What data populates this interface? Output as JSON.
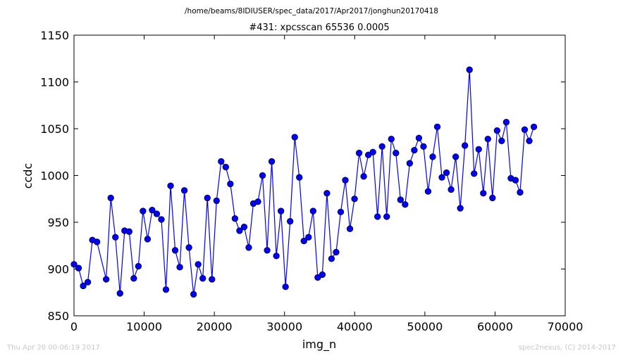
{
  "figure": {
    "path_text": "/home/beams/8IDIUSER/spec_data/2017/Apr2017/jonghun20170418",
    "title": "#431: xpcsscan 65536 0.0005",
    "timestamp": "Thu Apr 20 00:06:19 2017",
    "credit": "spec2nexus, (C) 2014-2017",
    "series_color": "#0000ff"
  },
  "chart_data": {
    "type": "line",
    "title": "#431: xpcsscan 65536 0.0005",
    "xlabel": "img_n",
    "ylabel": "ccdc",
    "xlim": [
      0,
      70000
    ],
    "ylim": [
      850,
      1150
    ],
    "xticks": [
      0,
      10000,
      20000,
      30000,
      40000,
      50000,
      60000,
      70000
    ],
    "yticks": [
      850,
      900,
      950,
      1000,
      1050,
      1100,
      1150
    ],
    "grid": false,
    "marker": "circle",
    "series": [
      {
        "x": [
          0,
          655,
          1311,
          1966,
          2621,
          3277,
          4588,
          5243,
          5898,
          6554,
          7209,
          7864,
          8520,
          9175,
          9830,
          10486,
          11141,
          11796,
          12452,
          13107,
          13762,
          14418,
          15073,
          15728,
          16384,
          17039,
          17694,
          18350,
          19005,
          19660,
          20316,
          20971,
          21626,
          22282,
          22937,
          23592,
          24248,
          24903,
          25558,
          26214,
          26869,
          27525,
          28180,
          28835,
          29491,
          30146,
          30801,
          31457,
          32112,
          32767,
          33423,
          34078,
          34733,
          35389,
          36044,
          36699,
          37355,
          38010,
          38665,
          39321,
          39976,
          40632,
          41287,
          41942,
          42598,
          43253,
          43908,
          44564,
          45219,
          45874,
          46530,
          47185,
          47840,
          48496,
          49151,
          49806,
          50462,
          51117,
          51772,
          52428,
          53083,
          53739,
          54394,
          55049,
          55705,
          56360,
          57015,
          57671,
          58326,
          58981,
          59637,
          60292,
          60947,
          61603,
          62258,
          62913,
          63569,
          64224,
          64879,
          65535
        ],
        "values": [
          905,
          901,
          882,
          886,
          931,
          929,
          889,
          976,
          934,
          874,
          941,
          940,
          890,
          903,
          962,
          932,
          963,
          959,
          953,
          878,
          989,
          920,
          902,
          984,
          923,
          873,
          905,
          890,
          976,
          889,
          973,
          1015,
          1009,
          991,
          954,
          941,
          945,
          923,
          970,
          972,
          1000,
          920,
          1015,
          914,
          962,
          881,
          951,
          1041,
          998,
          930,
          934,
          962,
          891,
          894,
          981,
          911,
          918,
          961,
          995,
          943,
          975,
          1024,
          999,
          1022,
          1025,
          956,
          1031,
          956,
          1039,
          1024,
          974,
          969,
          1013,
          1027,
          1040,
          1031,
          983,
          1020,
          1052,
          998,
          1003,
          985,
          1020,
          965,
          1032,
          1113,
          1002,
          1028,
          981,
          1039,
          976,
          1048,
          1037,
          1057,
          997,
          995,
          982,
          1049,
          1037,
          1052
        ]
      }
    ]
  }
}
